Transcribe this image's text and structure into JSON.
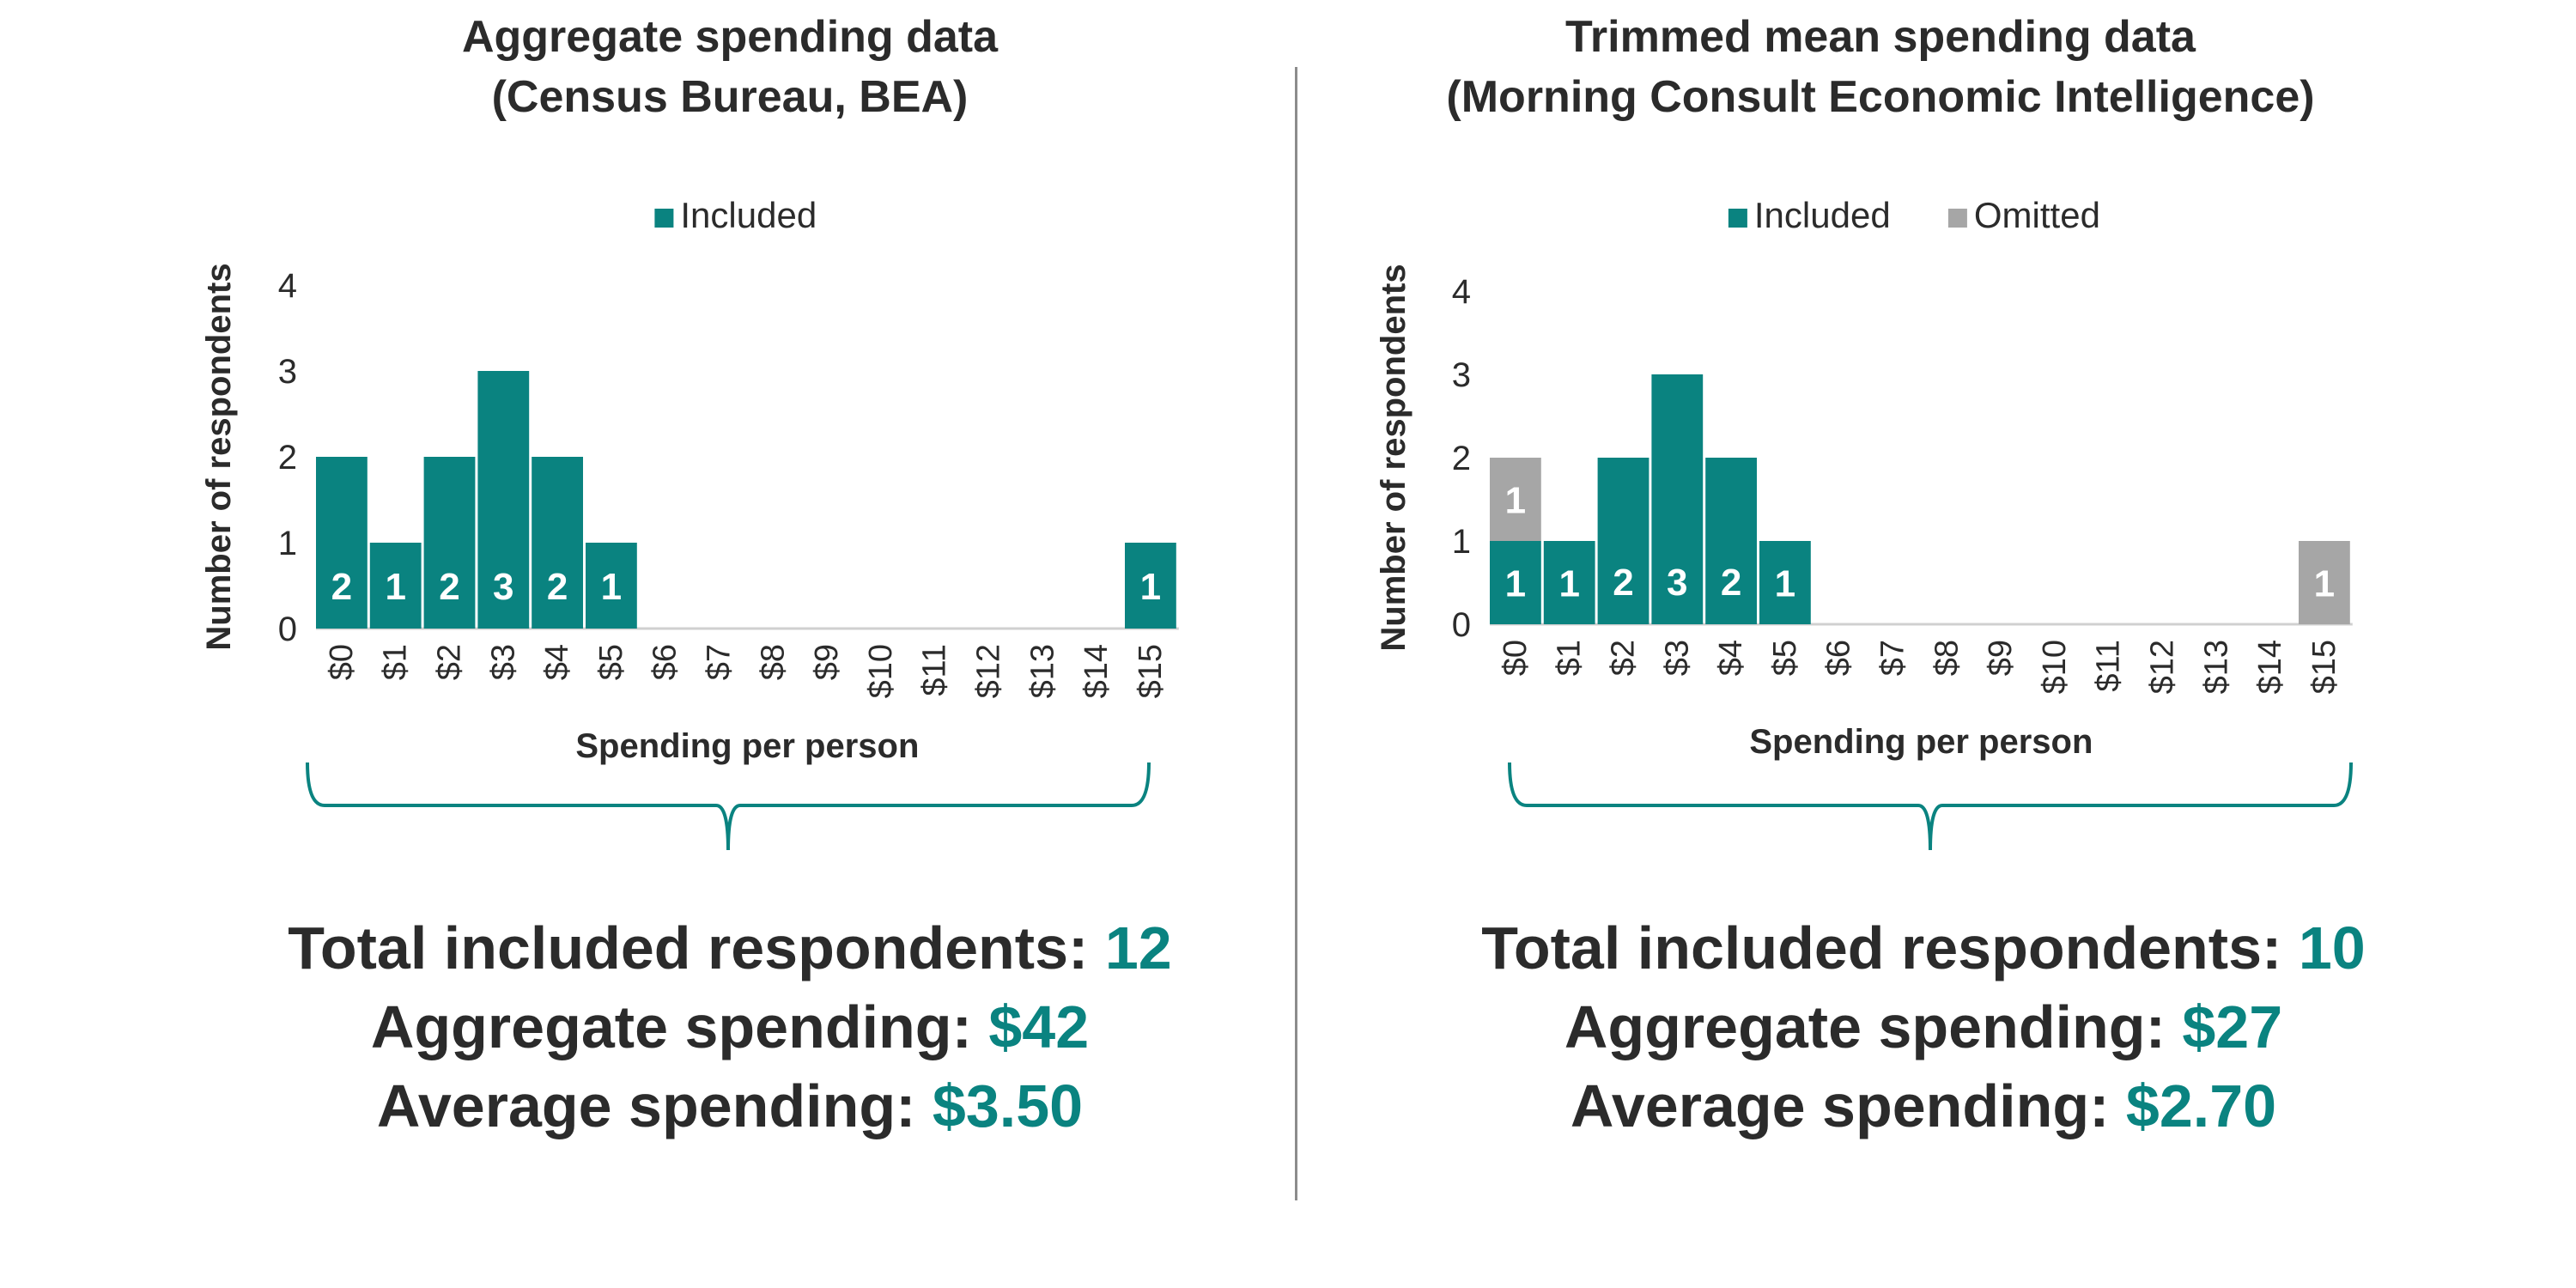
{
  "colors": {
    "included": "#0a8380",
    "omitted": "#a6a6a6",
    "text": "#2b2b2b",
    "axis": "#d0d0d0"
  },
  "panels": [
    {
      "title_line1": "Aggregate spending data",
      "title_line2": "(Census Bureau, BEA)",
      "summary": {
        "total_label": "Total included respondents:",
        "total_value": "12",
        "aggregate_label": "Aggregate spending:",
        "aggregate_value": "$42",
        "average_label": "Average spending:",
        "average_value": "$3.50"
      }
    },
    {
      "title_line1": "Trimmed mean spending data",
      "title_line2": "(Morning Consult Economic Intelligence)",
      "summary": {
        "total_label": "Total included respondents:",
        "total_value": "10",
        "aggregate_label": "Aggregate spending:",
        "aggregate_value": "$27",
        "average_label": "Average spending:",
        "average_value": "$2.70"
      }
    }
  ],
  "chart_data": [
    {
      "type": "bar",
      "stacked": true,
      "categories": [
        "$0",
        "$1",
        "$2",
        "$3",
        "$4",
        "$5",
        "$6",
        "$7",
        "$8",
        "$9",
        "$10",
        "$11",
        "$12",
        "$13",
        "$14",
        "$15"
      ],
      "series": [
        {
          "name": "Included",
          "color": "#0a8380",
          "values": [
            2,
            1,
            2,
            3,
            2,
            1,
            0,
            0,
            0,
            0,
            0,
            0,
            0,
            0,
            0,
            1
          ]
        }
      ],
      "xlabel": "Spending per person",
      "ylabel": "Number of respondents",
      "yticks": [
        "0",
        "1",
        "2",
        "3",
        "4"
      ],
      "ylim": [
        0,
        4
      ],
      "legend": "top-center",
      "grid": false
    },
    {
      "type": "bar",
      "stacked": true,
      "categories": [
        "$0",
        "$1",
        "$2",
        "$3",
        "$4",
        "$5",
        "$6",
        "$7",
        "$8",
        "$9",
        "$10",
        "$11",
        "$12",
        "$13",
        "$14",
        "$15"
      ],
      "series": [
        {
          "name": "Included",
          "color": "#0a8380",
          "values": [
            1,
            1,
            2,
            3,
            2,
            1,
            0,
            0,
            0,
            0,
            0,
            0,
            0,
            0,
            0,
            0
          ]
        },
        {
          "name": "Omitted",
          "color": "#a6a6a6",
          "values": [
            1,
            0,
            0,
            0,
            0,
            0,
            0,
            0,
            0,
            0,
            0,
            0,
            0,
            0,
            0,
            1
          ]
        }
      ],
      "xlabel": "Spending per person",
      "ylabel": "Number of respondents",
      "yticks": [
        "0",
        "1",
        "2",
        "3",
        "4"
      ],
      "ylim": [
        0,
        4
      ],
      "legend": "top-center",
      "grid": false
    }
  ]
}
